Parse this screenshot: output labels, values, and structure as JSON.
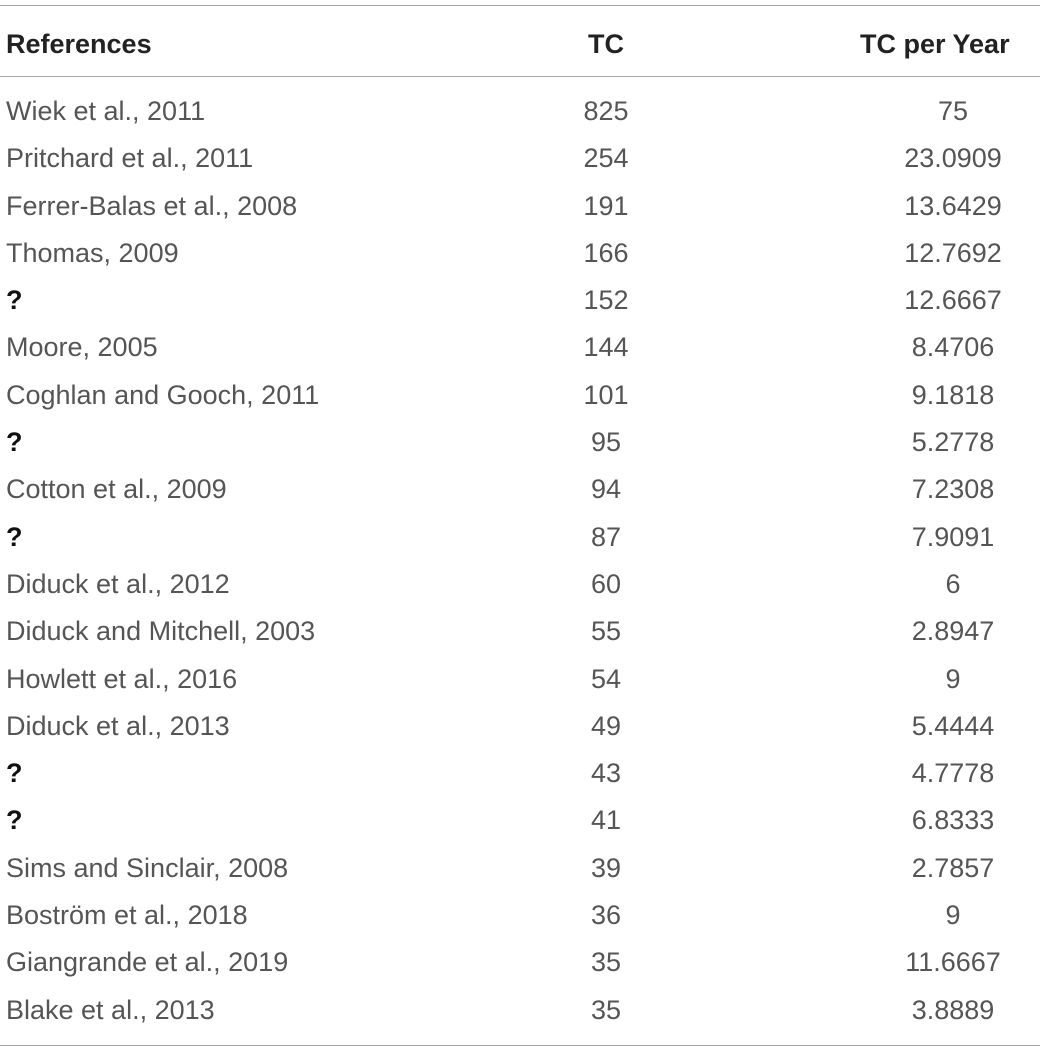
{
  "table": {
    "headers": {
      "references": "References",
      "tc": "TC",
      "tc_per_year": "TC per Year"
    },
    "rows": [
      {
        "reference": "Wiek et al., 2011",
        "tc": "825",
        "tc_per_year": "75",
        "unknown": false
      },
      {
        "reference": "Pritchard et al., 2011",
        "tc": "254",
        "tc_per_year": "23.0909",
        "unknown": false
      },
      {
        "reference": "Ferrer-Balas et al., 2008",
        "tc": "191",
        "tc_per_year": "13.6429",
        "unknown": false
      },
      {
        "reference": "Thomas, 2009",
        "tc": "166",
        "tc_per_year": "12.7692",
        "unknown": false
      },
      {
        "reference": "?",
        "tc": "152",
        "tc_per_year": "12.6667",
        "unknown": true
      },
      {
        "reference": "Moore, 2005",
        "tc": "144",
        "tc_per_year": "8.4706",
        "unknown": false
      },
      {
        "reference": "Coghlan and Gooch, 2011",
        "tc": "101",
        "tc_per_year": "9.1818",
        "unknown": false
      },
      {
        "reference": "?",
        "tc": "95",
        "tc_per_year": "5.2778",
        "unknown": true
      },
      {
        "reference": "Cotton et al., 2009",
        "tc": "94",
        "tc_per_year": "7.2308",
        "unknown": false
      },
      {
        "reference": "?",
        "tc": "87",
        "tc_per_year": "7.9091",
        "unknown": true
      },
      {
        "reference": "Diduck et al., 2012",
        "tc": "60",
        "tc_per_year": "6",
        "unknown": false
      },
      {
        "reference": "Diduck and Mitchell, 2003",
        "tc": "55",
        "tc_per_year": "2.8947",
        "unknown": false
      },
      {
        "reference": "Howlett et al., 2016",
        "tc": "54",
        "tc_per_year": "9",
        "unknown": false
      },
      {
        "reference": "Diduck et al., 2013",
        "tc": "49",
        "tc_per_year": "5.4444",
        "unknown": false
      },
      {
        "reference": "?",
        "tc": "43",
        "tc_per_year": "4.7778",
        "unknown": true
      },
      {
        "reference": "?",
        "tc": "41",
        "tc_per_year": "6.8333",
        "unknown": true
      },
      {
        "reference": "Sims and Sinclair, 2008",
        "tc": "39",
        "tc_per_year": "2.7857",
        "unknown": false
      },
      {
        "reference": "Boström et al., 2018",
        "tc": "36",
        "tc_per_year": "9",
        "unknown": false
      },
      {
        "reference": "Giangrande et al., 2019",
        "tc": "35",
        "tc_per_year": "11.6667",
        "unknown": false
      },
      {
        "reference": "Blake et al., 2013",
        "tc": "35",
        "tc_per_year": "3.8889",
        "unknown": false
      }
    ]
  }
}
